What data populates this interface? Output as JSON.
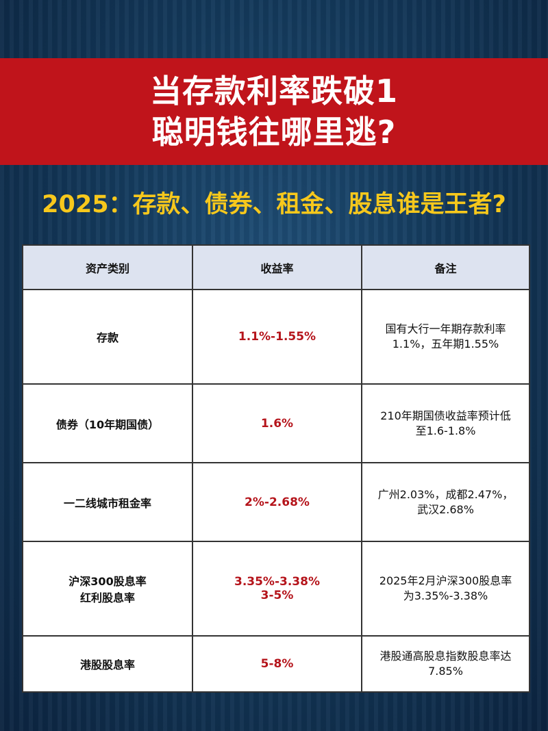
{
  "title": {
    "line1": "当存款利率跌破1",
    "line2": "聪明钱往哪里逃?"
  },
  "subtitle": "2025：存款、债券、租金、股息谁是王者?",
  "colors": {
    "banner": "#c0141b",
    "subtitle": "#f7c81c",
    "rate": "#b5141b"
  },
  "table": {
    "headers": [
      "资产类别",
      "收益率",
      "备注"
    ],
    "rows": [
      {
        "category": "存款",
        "rate": "1.1%-1.55%",
        "note": "国有大行一年期存款利率1.1%，五年期1.55%"
      },
      {
        "category": "债券（10年期国债）",
        "rate": "1.6%",
        "note": "210年期国债收益率预计低至1.6-1.8%"
      },
      {
        "category": "一二线城市租金率",
        "rate": "2%-2.68%",
        "note": "广州2.03%，成都2.47%，武汉2.68%"
      },
      {
        "category": "沪深300股息率\n红利股息率",
        "rate": "3.35%-3.38%\n3-5%",
        "note": "2025年2月沪深300股息率为3.35%-3.38%"
      },
      {
        "category": "港股股息率",
        "rate": "5-8%",
        "note": "港股通高股息指数股息率达7.85%"
      }
    ]
  }
}
